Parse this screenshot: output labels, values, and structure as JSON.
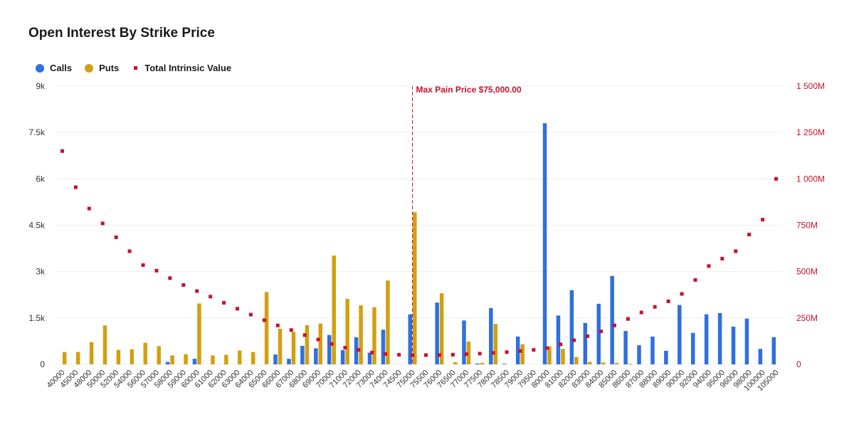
{
  "title": "Open Interest By Strike Price",
  "legend": {
    "calls": "Calls",
    "puts": "Puts",
    "total": "Total Intrinsic Value"
  },
  "colors": {
    "calls": "#2f6fe0",
    "puts": "#d39f10",
    "total": "#c8102e",
    "grid": "#eeeeee"
  },
  "chart_data": {
    "type": "bar",
    "title": "Open Interest By Strike Price",
    "categories": [
      "40000",
      "45000",
      "48000",
      "50000",
      "52000",
      "54000",
      "56000",
      "57000",
      "58000",
      "59000",
      "60000",
      "61000",
      "62000",
      "63000",
      "64000",
      "65000",
      "66000",
      "67000",
      "68000",
      "69000",
      "70000",
      "71000",
      "72000",
      "73000",
      "74000",
      "74500",
      "75000",
      "75500",
      "76000",
      "76500",
      "77000",
      "77500",
      "78000",
      "78500",
      "79000",
      "79500",
      "80000",
      "81000",
      "82000",
      "83000",
      "84000",
      "85000",
      "86000",
      "87000",
      "88000",
      "89000",
      "90000",
      "92000",
      "94000",
      "95000",
      "96000",
      "98000",
      "100000",
      "105000"
    ],
    "series": [
      {
        "name": "Calls",
        "axis": "left",
        "type": "bar",
        "values": [
          0,
          0,
          0,
          0,
          0,
          0,
          0,
          0,
          80,
          0,
          180,
          0,
          0,
          0,
          0,
          0,
          320,
          180,
          600,
          520,
          950,
          460,
          880,
          380,
          1120,
          0,
          1620,
          0,
          2000,
          0,
          1420,
          30,
          1820,
          20,
          900,
          0,
          7800,
          1580,
          2400,
          1340,
          1960,
          2860,
          1080,
          620,
          900,
          440,
          1920,
          1020,
          1620,
          1660,
          1220,
          1480,
          500,
          880
        ]
      },
      {
        "name": "Puts",
        "axis": "left",
        "type": "bar",
        "values": [
          400,
          400,
          720,
          1260,
          470,
          490,
          700,
          590,
          290,
          330,
          1970,
          290,
          310,
          450,
          400,
          2340,
          1150,
          1050,
          1270,
          1320,
          3520,
          2120,
          1910,
          1850,
          2710,
          0,
          4920,
          0,
          2300,
          70,
          740,
          50,
          1310,
          0,
          650,
          0,
          580,
          500,
          240,
          80,
          60,
          50,
          20,
          0,
          0,
          0,
          0,
          0,
          0,
          0,
          0,
          0,
          0,
          0
        ]
      },
      {
        "name": "Total Intrinsic Value",
        "axis": "right",
        "type": "scatter",
        "values": [
          1150,
          955,
          840,
          760,
          685,
          610,
          535,
          505,
          465,
          428,
          395,
          365,
          332,
          300,
          268,
          238,
          210,
          185,
          158,
          134,
          110,
          90,
          78,
          64,
          56,
          52,
          50,
          50,
          50,
          52,
          55,
          58,
          62,
          66,
          72,
          78,
          88,
          108,
          130,
          152,
          178,
          210,
          245,
          280,
          310,
          340,
          380,
          455,
          530,
          570,
          610,
          700,
          780,
          1000
        ]
      }
    ],
    "yleft": {
      "ylim": [
        0,
        9000
      ],
      "ticks": [
        "0",
        "1.5k",
        "3k",
        "4.5k",
        "6k",
        "7.5k",
        "9k"
      ]
    },
    "yright": {
      "unit": "M",
      "ylim": [
        0,
        1500
      ],
      "ticks": [
        "0",
        "250M",
        "500M",
        "750M",
        "1 000M",
        "1 250M",
        "1 500M"
      ]
    },
    "annotation": {
      "label": "Max Pain Price $75,000.00",
      "category": "75000"
    },
    "grid": true,
    "legend_position": "top-left"
  }
}
